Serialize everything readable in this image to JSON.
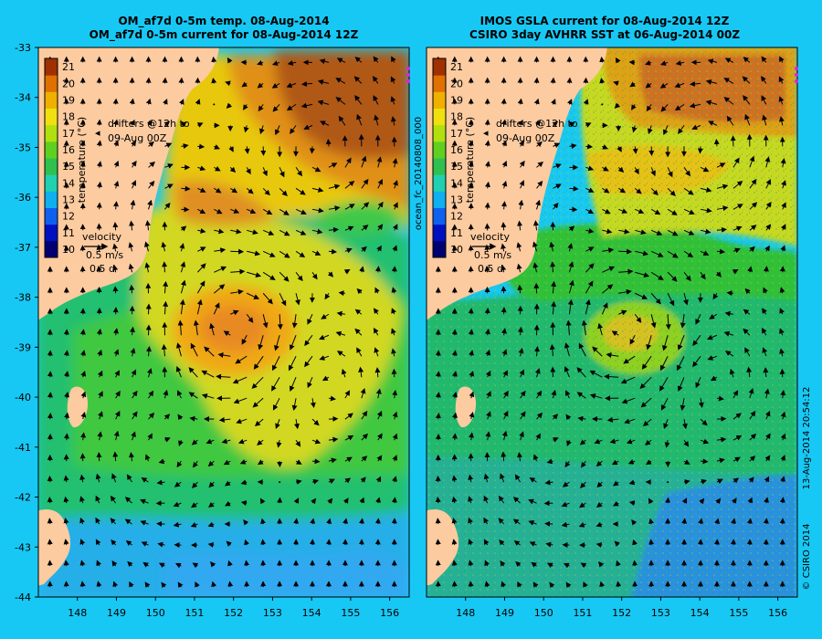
{
  "background": "#18c8f4",
  "land_color": "#fccba0",
  "left_panel": {
    "title_line1": "OM_af7d 0-5m temp. 08-Aug-2014",
    "title_line2": "OM_af7d 0-5m current for 08-Aug-2014 12Z",
    "colorbar_label": "temperature (°C)",
    "drifters_line1": "drifters @12h to",
    "drifters_line2": "09-Aug 00Z",
    "velocity_label": "velocity",
    "velocity_speed": "0.5 m/s",
    "velocity_duration": "0.5 d"
  },
  "right_panel": {
    "title_line1": "IMOS GSLA current for 08-Aug-2014 12Z",
    "title_line2": "CSIRO 3day AVHRR SST at 06-Aug-2014 00Z",
    "colorbar_label": "temperature (°C)",
    "drifters_line1": "drifters @12h to",
    "drifters_line2": "09-Aug 00Z",
    "velocity_label": "velocity",
    "velocity_speed": "0.5 m/s",
    "velocity_duration": "0.5 d"
  },
  "middle_label": "ocean_fc_20140808_000",
  "timestamp_label": "13-Aug-2014 20:54:12",
  "copyright_label": "© CSIRO 2014",
  "chart_data": {
    "type": "heatmap",
    "x_ticks": [
      "148",
      "149",
      "150",
      "151",
      "152",
      "153",
      "154",
      "155",
      "156"
    ],
    "y_ticks": [
      "-33",
      "-34",
      "-35",
      "-36",
      "-37",
      "-38",
      "-39",
      "-40",
      "-41",
      "-42",
      "-43",
      "-44"
    ],
    "xlim": [
      147.0,
      156.5
    ],
    "ylim": [
      -44,
      -33
    ],
    "colorbar": {
      "ticks": [
        "21",
        "20",
        "19",
        "18",
        "17",
        "16",
        "15",
        "14",
        "13",
        "12",
        "11",
        "10"
      ],
      "range": [
        9.5,
        21.5
      ],
      "colors": [
        "#000070",
        "#0010c0",
        "#1060f0",
        "#10b0f0",
        "#20d0b0",
        "#30c050",
        "#60d020",
        "#b0e010",
        "#f0e010",
        "#f0b000",
        "#e07000",
        "#a03000"
      ]
    }
  }
}
